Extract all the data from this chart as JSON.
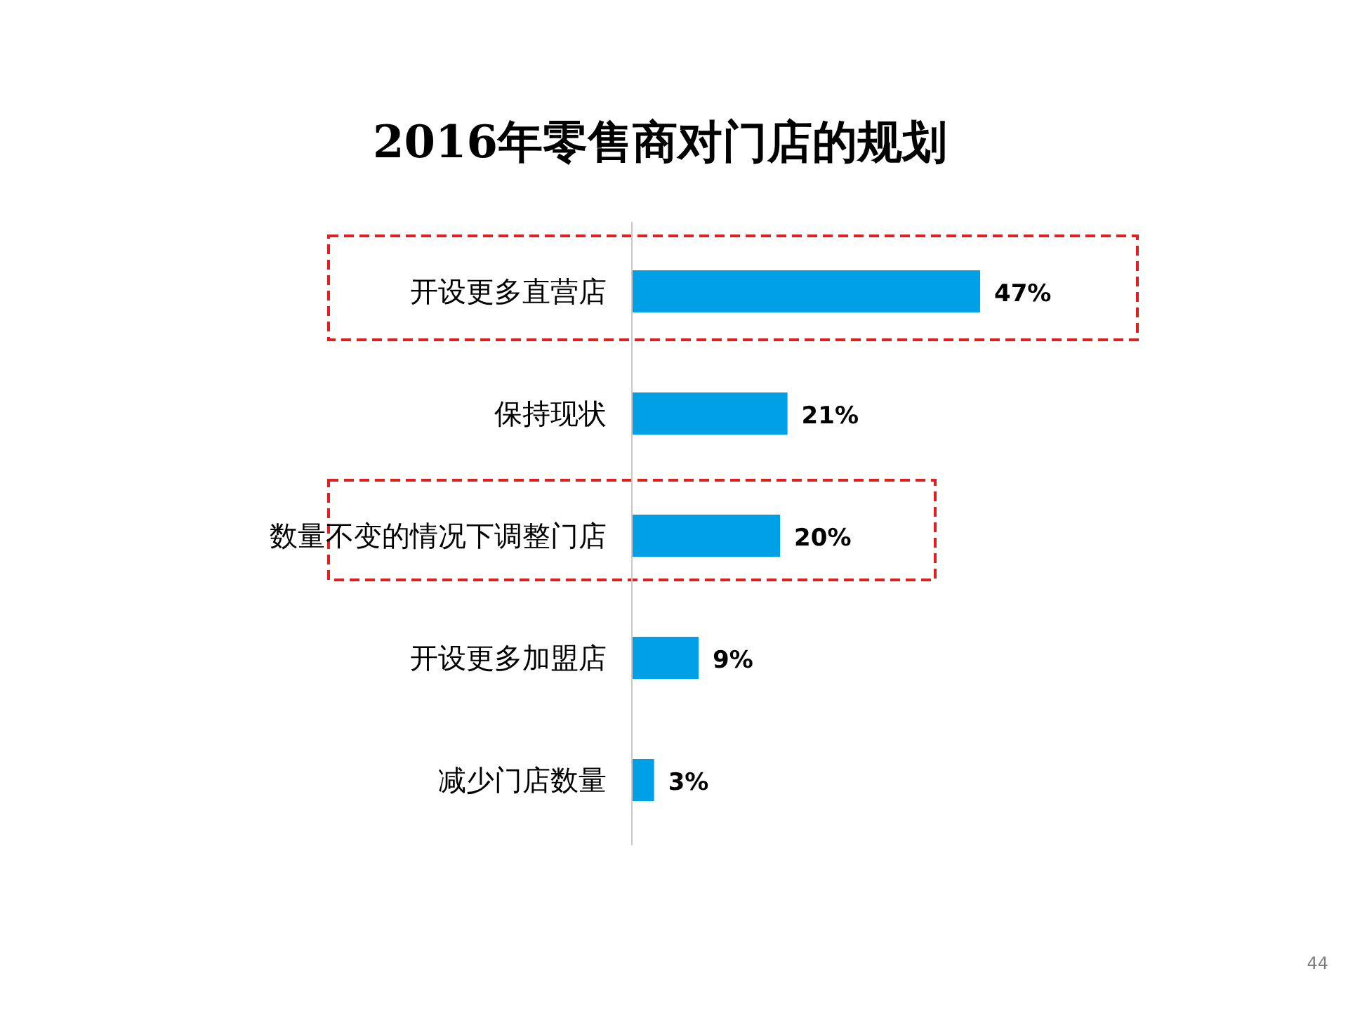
{
  "chart_data": {
    "type": "bar",
    "orientation": "horizontal",
    "title": "2016年零售商对门店的规划",
    "categories": [
      "开设更多直营店",
      "保持现状",
      "数量不变的情况下调整门店",
      "开设更多加盟店",
      "减少门店数量"
    ],
    "values": [
      47,
      21,
      20,
      9,
      3
    ],
    "value_labels": [
      "47%",
      "21%",
      "20%",
      "9%",
      "3%"
    ],
    "color": "#00a0e6",
    "annotations": [
      "44"
    ]
  }
}
